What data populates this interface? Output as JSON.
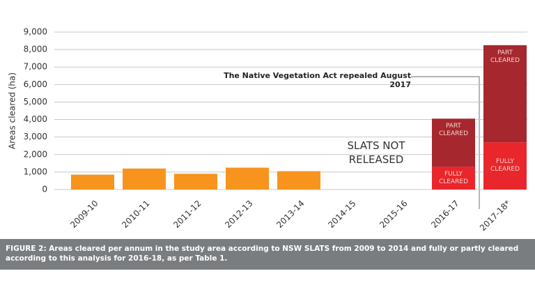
{
  "chart_data": {
    "type": "stacked-bar",
    "y_label": "Areas cleared (ha)",
    "categories": [
      "2009-10",
      "2010-11",
      "2011-12",
      "2012-13",
      "2013-14",
      "2014-15",
      "2015-16",
      "2016-17",
      "2017-18*"
    ],
    "series": [
      {
        "color": "#f7941d",
        "values": [
          850,
          1200,
          900,
          1250,
          1050,
          null,
          null,
          null,
          null
        ]
      },
      {
        "name": "FULLY CLEARED",
        "color": "#e8262b",
        "values": [
          null,
          null,
          null,
          null,
          null,
          null,
          null,
          1300,
          2700
        ]
      },
      {
        "name": "PART CLEARED",
        "color": "#a6272e",
        "values": [
          null,
          null,
          null,
          null,
          null,
          null,
          null,
          2750,
          5550
        ]
      }
    ],
    "ylim": [
      0,
      9000
    ],
    "yticks": [
      0,
      {
        "value": 1000,
        "label": "1,000"
      },
      {
        "value": 2000,
        "label": "2,000"
      },
      {
        "value": 3000,
        "label": "3,000"
      },
      {
        "value": 4000,
        "label": "4,000"
      },
      {
        "value": 5000,
        "label": "5,000"
      },
      {
        "value": 6000,
        "label": "6,000"
      },
      {
        "value": 7000,
        "label": "7,000"
      },
      {
        "value": 8000,
        "label": "8,000"
      },
      {
        "value": 9000,
        "label": "9,000"
      }
    ],
    "grid": true,
    "annotations": [
      "SLATS NOT RELEASED",
      "The Native Vegetation Act repealed August 2017"
    ],
    "caption": "FIGURE 2: Areas cleared per annum in the study area according to NSW SLATS from 2009 to 2014 and fully or partly cleared according to this analysis for 2016-18, as per Table 1."
  }
}
